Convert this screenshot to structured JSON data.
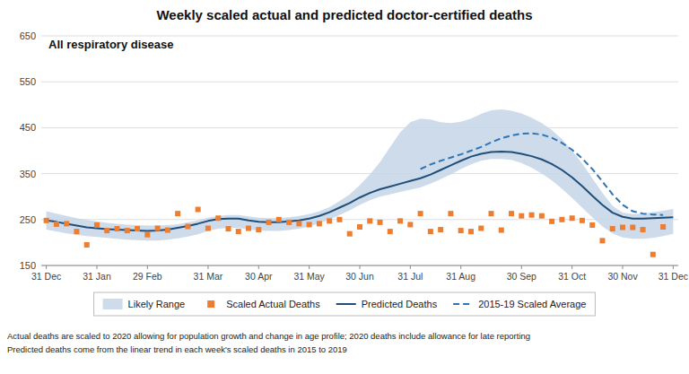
{
  "chart_data": {
    "type": "line",
    "title": "Weekly scaled actual and predicted doctor-certified deaths",
    "subtitle": "All respiratory disease",
    "annotations": [
      "Actual deaths are scaled to 2020 allowing for population growth and change in age profile; 2020 deaths include allowance for late reporting",
      "Predicted deaths come from the linear trend in each week's scaled deaths in 2015 to 2019"
    ],
    "categories": [
      "31 Dec",
      null,
      null,
      null,
      null,
      "31 Jan",
      null,
      null,
      null,
      null,
      "29 Feb",
      null,
      null,
      null,
      null,
      null,
      "31 Mar",
      null,
      null,
      null,
      null,
      "30 Apr",
      null,
      null,
      null,
      null,
      "31 May",
      null,
      null,
      null,
      null,
      "30 Jun",
      null,
      null,
      null,
      null,
      "31 Jul",
      null,
      null,
      null,
      null,
      "31 Aug",
      null,
      null,
      null,
      null,
      null,
      "30 Sep",
      null,
      null,
      null,
      null,
      "31 Oct",
      null,
      null,
      null,
      null,
      "30 Nov",
      null,
      null,
      null,
      null,
      "31 Dec"
    ],
    "ylim": [
      150,
      650
    ],
    "yticks": [
      150,
      250,
      350,
      450,
      550,
      650
    ],
    "grid": "y",
    "legend": "bottom",
    "series": [
      {
        "name": "Likely Range",
        "type": "area",
        "color": "#c5d5e8",
        "upper": [
          268,
          263,
          258,
          253,
          249,
          246,
          243,
          241,
          239,
          238,
          237,
          237,
          238,
          240,
          244,
          248,
          254,
          258,
          260,
          260,
          257,
          254,
          253,
          253,
          255,
          258,
          262,
          268,
          277,
          290,
          305,
          325,
          348,
          375,
          408,
          440,
          462,
          470,
          468,
          462,
          460,
          463,
          470,
          480,
          488,
          490,
          487,
          481,
          472,
          460,
          445,
          425,
          400,
          372,
          340,
          308,
          280,
          265,
          262,
          263,
          266,
          269,
          273
        ],
        "lower": [
          228,
          224,
          220,
          217,
          214,
          212,
          210,
          208,
          206,
          205,
          204,
          204,
          206,
          209,
          213,
          218,
          225,
          230,
          232,
          232,
          228,
          226,
          225,
          225,
          227,
          230,
          235,
          242,
          250,
          260,
          270,
          282,
          292,
          300,
          305,
          310,
          315,
          320,
          328,
          338,
          348,
          360,
          370,
          378,
          382,
          382,
          380,
          373,
          363,
          350,
          335,
          317,
          297,
          276,
          255,
          235,
          220,
          211,
          208,
          208,
          210,
          214,
          219
        ]
      },
      {
        "name": "Scaled Actual Deaths",
        "type": "scatter",
        "marker": "square",
        "color": "#ed7d31",
        "values": [
          248,
          240,
          241,
          224,
          195,
          238,
          226,
          230,
          226,
          230,
          217,
          231,
          227,
          263,
          235,
          272,
          231,
          253,
          230,
          224,
          231,
          228,
          244,
          250,
          244,
          241,
          239,
          241,
          247,
          250,
          219,
          234,
          247,
          244,
          224,
          247,
          239,
          263,
          224,
          228,
          263,
          226,
          224,
          231,
          263,
          227,
          263,
          258,
          260,
          258,
          246,
          250,
          253,
          248,
          238,
          204,
          230,
          233,
          233,
          228,
          174,
          234,
          null
        ]
      },
      {
        "name": "Predicted Deaths",
        "type": "line",
        "line_style": "solid",
        "color": "#1f4e79",
        "values": [
          248,
          245,
          241,
          237,
          233,
          231,
          229,
          228,
          227,
          226,
          225,
          226,
          228,
          232,
          236,
          241,
          247,
          251,
          252,
          252,
          248,
          245,
          244,
          244,
          246,
          248,
          252,
          258,
          266,
          276,
          286,
          298,
          308,
          316,
          322,
          328,
          334,
          340,
          348,
          358,
          368,
          378,
          387,
          393,
          397,
          398,
          397,
          393,
          388,
          381,
          371,
          358,
          342,
          323,
          302,
          282,
          265,
          256,
          252,
          252,
          253,
          254,
          255
        ]
      },
      {
        "name": "2015-19 Scaled Average",
        "type": "line",
        "line_style": "dashed",
        "color": "#2e75b6",
        "values": [
          null,
          null,
          null,
          null,
          null,
          null,
          null,
          null,
          null,
          null,
          null,
          null,
          null,
          null,
          null,
          null,
          null,
          null,
          null,
          null,
          null,
          null,
          null,
          null,
          null,
          null,
          null,
          null,
          null,
          null,
          null,
          null,
          null,
          null,
          null,
          null,
          null,
          360,
          370,
          378,
          385,
          392,
          400,
          408,
          418,
          427,
          433,
          437,
          438,
          435,
          428,
          417,
          402,
          383,
          360,
          333,
          305,
          282,
          268,
          263,
          261,
          260,
          null
        ]
      }
    ]
  }
}
